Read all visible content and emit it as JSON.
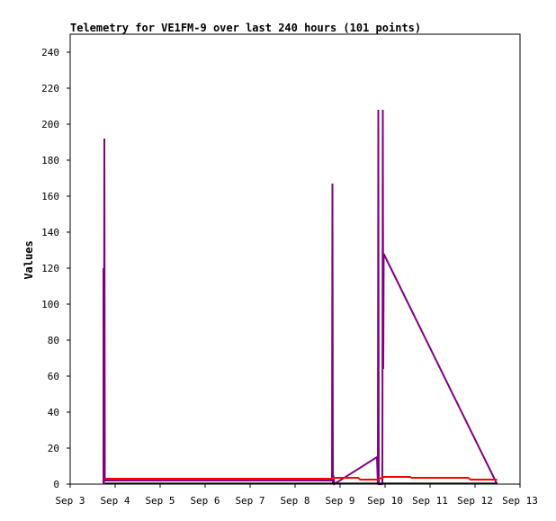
{
  "chart_data": {
    "type": "line",
    "title": "Telemetry for VE1FM-9 over last 240 hours (101 points)",
    "xlabel": "",
    "ylabel": "Values",
    "ylim": [
      0,
      240
    ],
    "xlim": [
      "Sep 3",
      "Sep 13"
    ],
    "x_ticks": [
      "Sep 3",
      "Sep 4",
      "Sep 5",
      "Sep 6",
      "Sep 7",
      "Sep 8",
      "Sep 9",
      "Sep 10",
      "Sep 11",
      "Sep 12",
      "Sep 13"
    ],
    "y_ticks": [
      0,
      20,
      40,
      60,
      80,
      100,
      120,
      140,
      160,
      180,
      200,
      220,
      240
    ],
    "grid": false,
    "legend": "none",
    "series": [
      {
        "color": "#800080",
        "points": [
          [
            3.74,
            0
          ],
          [
            3.74,
            120
          ],
          [
            3.75,
            0
          ],
          [
            3.76,
            192
          ],
          [
            3.77,
            2
          ],
          [
            8.82,
            2
          ],
          [
            8.83,
            167
          ],
          [
            8.84,
            0
          ],
          [
            8.85,
            5
          ],
          [
            8.87,
            0
          ],
          [
            9.82,
            15
          ],
          [
            9.84,
            0
          ],
          [
            9.85,
            208
          ],
          [
            9.86,
            0
          ],
          [
            9.94,
            0
          ],
          [
            9.95,
            208
          ],
          [
            9.96,
            64
          ],
          [
            9.97,
            128
          ],
          [
            12.49,
            0
          ]
        ]
      },
      {
        "color": "#ff0000",
        "points": [
          [
            3.77,
            3
          ],
          [
            8.82,
            3
          ],
          [
            8.85,
            3.5
          ],
          [
            9.4,
            3.5
          ],
          [
            9.45,
            2.5
          ],
          [
            9.84,
            2.5
          ],
          [
            9.97,
            4
          ],
          [
            10.55,
            4
          ],
          [
            10.6,
            3.5
          ],
          [
            11.85,
            3.5
          ],
          [
            11.9,
            2.5
          ],
          [
            12.49,
            2.5
          ]
        ]
      },
      {
        "color": "#000000",
        "points": [
          [
            3.77,
            0.3
          ],
          [
            12.49,
            0.3
          ]
        ]
      }
    ]
  }
}
